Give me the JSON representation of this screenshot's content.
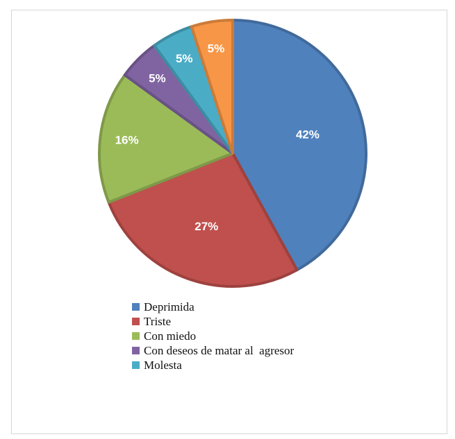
{
  "chart_data": {
    "type": "pie",
    "title": "",
    "slices": [
      {
        "label": "Deprimida",
        "value": 42,
        "color": "#4f81bd",
        "data_label": "42%"
      },
      {
        "label": "Triste",
        "value": 27,
        "color": "#c0504d",
        "data_label": "27%"
      },
      {
        "label": "Con miedo",
        "value": 16,
        "color": "#9bbb59",
        "data_label": "16%"
      },
      {
        "label": "Con deseos de matar al  agresor",
        "value": 5,
        "color": "#8064a2",
        "data_label": "5%"
      },
      {
        "label": "Molesta",
        "value": 5,
        "color": "#4bacc6",
        "data_label": "5%"
      },
      {
        "label": "",
        "value": 5,
        "color": "#f79646",
        "data_label": "5%"
      }
    ],
    "legend_position": "bottom",
    "legend_entries": [
      "Deprimida",
      "Triste",
      "Con miedo",
      "Con deseos de matar al  agresor",
      "Molesta"
    ]
  }
}
